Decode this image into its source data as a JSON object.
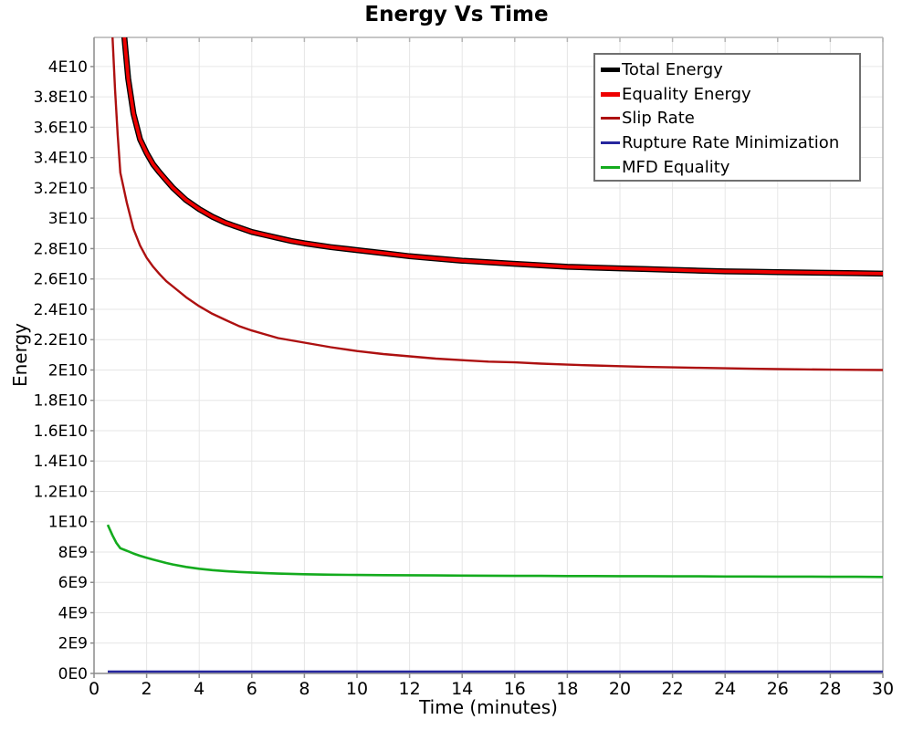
{
  "chart_data": {
    "type": "line",
    "title": "Energy Vs Time",
    "xlabel": "Time (minutes)",
    "ylabel": "Energy",
    "xlim": [
      0,
      30
    ],
    "ylim": [
      0,
      41920000000
    ],
    "grid": true,
    "legend_position": "top-right",
    "x_ticks": [
      0,
      2,
      4,
      6,
      8,
      10,
      12,
      14,
      16,
      18,
      20,
      22,
      24,
      26,
      28,
      30
    ],
    "y_ticks": [
      {
        "value": 0,
        "label": "0E0"
      },
      {
        "value": 2000000000.0,
        "label": "2E9"
      },
      {
        "value": 4000000000.0,
        "label": "4E9"
      },
      {
        "value": 6000000000.0,
        "label": "6E9"
      },
      {
        "value": 8000000000.0,
        "label": "8E9"
      },
      {
        "value": 10000000000.0,
        "label": "1E10"
      },
      {
        "value": 12000000000.0,
        "label": "1.2E10"
      },
      {
        "value": 14000000000.0,
        "label": "1.4E10"
      },
      {
        "value": 16000000000.0,
        "label": "1.6E10"
      },
      {
        "value": 18000000000.0,
        "label": "1.8E10"
      },
      {
        "value": 20000000000.0,
        "label": "2E10"
      },
      {
        "value": 22000000000.0,
        "label": "2.2E10"
      },
      {
        "value": 24000000000.0,
        "label": "2.4E10"
      },
      {
        "value": 26000000000.0,
        "label": "2.6E10"
      },
      {
        "value": 28000000000.0,
        "label": "2.8E10"
      },
      {
        "value": 30000000000.0,
        "label": "3E10"
      },
      {
        "value": 32000000000.0,
        "label": "3.2E10"
      },
      {
        "value": 34000000000.0,
        "label": "3.4E10"
      },
      {
        "value": 36000000000.0,
        "label": "3.6E10"
      },
      {
        "value": 38000000000.0,
        "label": "3.8E10"
      },
      {
        "value": 40000000000.0,
        "label": "4E10"
      }
    ],
    "colors": {
      "grid": "#e6e6e6",
      "axis": "#8c8c8c",
      "border": "#b4b4b4",
      "legend_border": "#707070"
    },
    "series": [
      {
        "name": "Total Energy",
        "color": "#000000",
        "line_width": 6.5,
        "legend_line_width": 5,
        "points": [
          [
            1.0,
            46000000000.0
          ],
          [
            1.15,
            42000000000.0
          ],
          [
            1.3,
            39200000000.0
          ],
          [
            1.5,
            36900000000.0
          ],
          [
            1.75,
            35200000000.0
          ],
          [
            2.0,
            34300000000.0
          ],
          [
            2.25,
            33550000000.0
          ],
          [
            2.5,
            33000000000.0
          ],
          [
            2.75,
            32500000000.0
          ],
          [
            3.0,
            32000000000.0
          ],
          [
            3.5,
            31200000000.0
          ],
          [
            4.0,
            30600000000.0
          ],
          [
            4.5,
            30100000000.0
          ],
          [
            5.0,
            29700000000.0
          ],
          [
            5.5,
            29400000000.0
          ],
          [
            6.0,
            29100000000.0
          ],
          [
            6.5,
            28900000000.0
          ],
          [
            7.0,
            28700000000.0
          ],
          [
            7.5,
            28500000000.0
          ],
          [
            8.0,
            28350000000.0
          ],
          [
            9.0,
            28100000000.0
          ],
          [
            10.0,
            27900000000.0
          ],
          [
            11.0,
            27700000000.0
          ],
          [
            12.0,
            27500000000.0
          ],
          [
            13.0,
            27350000000.0
          ],
          [
            14.0,
            27200000000.0
          ],
          [
            15.0,
            27100000000.0
          ],
          [
            16.0,
            27000000000.0
          ],
          [
            17.0,
            26900000000.0
          ],
          [
            18.0,
            26800000000.0
          ],
          [
            19.0,
            26750000000.0
          ],
          [
            20.0,
            26700000000.0
          ],
          [
            21.0,
            26650000000.0
          ],
          [
            22.0,
            26600000000.0
          ],
          [
            23.0,
            26550000000.0
          ],
          [
            24.0,
            26500000000.0
          ],
          [
            25.0,
            26480000000.0
          ],
          [
            26.0,
            26450000000.0
          ],
          [
            27.0,
            26430000000.0
          ],
          [
            28.0,
            26400000000.0
          ],
          [
            29.0,
            26380000000.0
          ],
          [
            30.0,
            26350000000.0
          ]
        ]
      },
      {
        "name": "Equality Energy",
        "color": "#ee0000",
        "line_width": 3.8,
        "legend_line_width": 5,
        "points": [
          [
            1.0,
            46000000000.0
          ],
          [
            1.15,
            42000000000.0
          ],
          [
            1.3,
            39200000000.0
          ],
          [
            1.5,
            36900000000.0
          ],
          [
            1.75,
            35200000000.0
          ],
          [
            2.0,
            34300000000.0
          ],
          [
            2.25,
            33550000000.0
          ],
          [
            2.5,
            33000000000.0
          ],
          [
            2.75,
            32500000000.0
          ],
          [
            3.0,
            32000000000.0
          ],
          [
            3.5,
            31200000000.0
          ],
          [
            4.0,
            30600000000.0
          ],
          [
            4.5,
            30100000000.0
          ],
          [
            5.0,
            29700000000.0
          ],
          [
            5.5,
            29400000000.0
          ],
          [
            6.0,
            29100000000.0
          ],
          [
            6.5,
            28900000000.0
          ],
          [
            7.0,
            28700000000.0
          ],
          [
            7.5,
            28500000000.0
          ],
          [
            8.0,
            28350000000.0
          ],
          [
            9.0,
            28100000000.0
          ],
          [
            10.0,
            27900000000.0
          ],
          [
            11.0,
            27700000000.0
          ],
          [
            12.0,
            27500000000.0
          ],
          [
            13.0,
            27350000000.0
          ],
          [
            14.0,
            27200000000.0
          ],
          [
            15.0,
            27100000000.0
          ],
          [
            16.0,
            27000000000.0
          ],
          [
            17.0,
            26900000000.0
          ],
          [
            18.0,
            26800000000.0
          ],
          [
            19.0,
            26750000000.0
          ],
          [
            20.0,
            26700000000.0
          ],
          [
            21.0,
            26650000000.0
          ],
          [
            22.0,
            26600000000.0
          ],
          [
            23.0,
            26550000000.0
          ],
          [
            24.0,
            26500000000.0
          ],
          [
            25.0,
            26480000000.0
          ],
          [
            26.0,
            26450000000.0
          ],
          [
            27.0,
            26430000000.0
          ],
          [
            28.0,
            26400000000.0
          ],
          [
            29.0,
            26380000000.0
          ],
          [
            30.0,
            26350000000.0
          ]
        ]
      },
      {
        "name": "Slip Rate",
        "color": "#ad1010",
        "line_width": 2.4,
        "legend_line_width": 3,
        "points": [
          [
            0.62,
            46000000000.0
          ],
          [
            0.7,
            42000000000.0
          ],
          [
            0.8,
            38500000000.0
          ],
          [
            0.9,
            35500000000.0
          ],
          [
            1.0,
            33000000000.0
          ],
          [
            1.1,
            32200000000.0
          ],
          [
            1.25,
            31000000000.0
          ],
          [
            1.5,
            29300000000.0
          ],
          [
            1.75,
            28200000000.0
          ],
          [
            2.0,
            27400000000.0
          ],
          [
            2.25,
            26800000000.0
          ],
          [
            2.5,
            26300000000.0
          ],
          [
            2.75,
            25850000000.0
          ],
          [
            3.0,
            25500000000.0
          ],
          [
            3.5,
            24800000000.0
          ],
          [
            4.0,
            24200000000.0
          ],
          [
            4.5,
            23700000000.0
          ],
          [
            5.0,
            23300000000.0
          ],
          [
            5.5,
            22900000000.0
          ],
          [
            6.0,
            22600000000.0
          ],
          [
            6.5,
            22350000000.0
          ],
          [
            7.0,
            22100000000.0
          ],
          [
            7.5,
            21950000000.0
          ],
          [
            8.0,
            21800000000.0
          ],
          [
            9.0,
            21500000000.0
          ],
          [
            10.0,
            21250000000.0
          ],
          [
            11.0,
            21050000000.0
          ],
          [
            12.0,
            20900000000.0
          ],
          [
            13.0,
            20750000000.0
          ],
          [
            14.0,
            20650000000.0
          ],
          [
            15.0,
            20550000000.0
          ],
          [
            16.0,
            20500000000.0
          ],
          [
            17.0,
            20420000000.0
          ],
          [
            18.0,
            20350000000.0
          ],
          [
            19.0,
            20300000000.0
          ],
          [
            20.0,
            20250000000.0
          ],
          [
            21.0,
            20200000000.0
          ],
          [
            22.0,
            20170000000.0
          ],
          [
            23.0,
            20140000000.0
          ],
          [
            24.0,
            20110000000.0
          ],
          [
            25.0,
            20080000000.0
          ],
          [
            26.0,
            20060000000.0
          ],
          [
            27.0,
            20040000000.0
          ],
          [
            28.0,
            20020000000.0
          ],
          [
            29.0,
            20010000000.0
          ],
          [
            30.0,
            20000000000.0
          ]
        ]
      },
      {
        "name": "Rupture Rate Minimization",
        "color": "#26269e",
        "line_width": 2.4,
        "legend_line_width": 3,
        "points": [
          [
            0.52,
            120000000.0
          ],
          [
            5.0,
            120000000.0
          ],
          [
            10.0,
            120000000.0
          ],
          [
            15.0,
            120000000.0
          ],
          [
            20.0,
            120000000.0
          ],
          [
            25.0,
            120000000.0
          ],
          [
            30.0,
            120000000.0
          ]
        ]
      },
      {
        "name": "MFD Equality",
        "color": "#14ab1e",
        "line_width": 2.6,
        "legend_line_width": 3,
        "points": [
          [
            0.52,
            9800000000.0
          ],
          [
            0.7,
            9100000000.0
          ],
          [
            0.85,
            8600000000.0
          ],
          [
            1.0,
            8250000000.0
          ],
          [
            1.15,
            8150000000.0
          ],
          [
            1.3,
            8050000000.0
          ],
          [
            1.5,
            7900000000.0
          ],
          [
            1.75,
            7750000000.0
          ],
          [
            2.0,
            7620000000.0
          ],
          [
            2.25,
            7500000000.0
          ],
          [
            2.5,
            7390000000.0
          ],
          [
            2.75,
            7280000000.0
          ],
          [
            3.0,
            7180000000.0
          ],
          [
            3.5,
            7020000000.0
          ],
          [
            4.0,
            6900000000.0
          ],
          [
            4.5,
            6810000000.0
          ],
          [
            5.0,
            6740000000.0
          ],
          [
            5.5,
            6690000000.0
          ],
          [
            6.0,
            6650000000.0
          ],
          [
            6.5,
            6610000000.0
          ],
          [
            7.0,
            6580000000.0
          ],
          [
            7.5,
            6560000000.0
          ],
          [
            8.0,
            6540000000.0
          ],
          [
            9.0,
            6510000000.0
          ],
          [
            10.0,
            6490000000.0
          ],
          [
            11.0,
            6480000000.0
          ],
          [
            12.0,
            6470000000.0
          ],
          [
            13.0,
            6460000000.0
          ],
          [
            14.0,
            6450000000.0
          ],
          [
            15.0,
            6440000000.0
          ],
          [
            16.0,
            6430000000.0
          ],
          [
            17.0,
            6430000000.0
          ],
          [
            18.0,
            6420000000.0
          ],
          [
            19.0,
            6420000000.0
          ],
          [
            20.0,
            6410000000.0
          ],
          [
            21.0,
            6410000000.0
          ],
          [
            22.0,
            6400000000.0
          ],
          [
            23.0,
            6400000000.0
          ],
          [
            24.0,
            6390000000.0
          ],
          [
            25.0,
            6390000000.0
          ],
          [
            26.0,
            6380000000.0
          ],
          [
            27.0,
            6380000000.0
          ],
          [
            28.0,
            6370000000.0
          ],
          [
            29.0,
            6370000000.0
          ],
          [
            30.0,
            6360000000.0
          ]
        ]
      }
    ]
  }
}
